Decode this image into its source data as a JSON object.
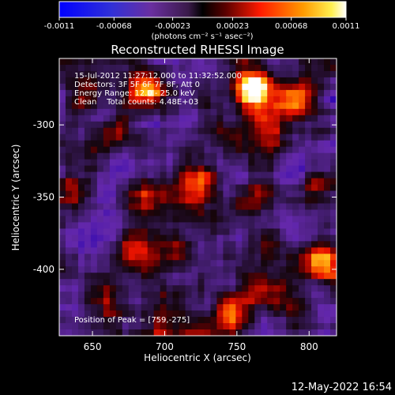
{
  "chart_data": {
    "type": "heatmap",
    "title": "Reconstructed RHESSI Image",
    "xlabel": "Heliocentric X (arcsec)",
    "ylabel": "Heliocentric Y (arcsec)",
    "x_ticks": [
      "650",
      "700",
      "750",
      "800"
    ],
    "x_tick_values": [
      650,
      700,
      750,
      800
    ],
    "y_ticks": [
      "-300",
      "-350",
      "-400"
    ],
    "y_tick_values": [
      -300,
      -350,
      -400
    ],
    "xlim": [
      627,
      819
    ],
    "ylim": [
      -446,
      -254
    ],
    "colorbar": {
      "ticks": [
        "-0.0011",
        "-0.00068",
        "-0.00023",
        "0.00023",
        "0.00068",
        "0.0011"
      ],
      "tick_values": [
        -0.0011,
        -0.00068,
        -0.00023,
        0.00023,
        0.00068,
        0.0011
      ],
      "range": [
        -0.0011,
        0.0011
      ],
      "units_label": "(photons cm⁻² s⁻¹ asec⁻²)"
    },
    "sources": [
      {
        "x": 759,
        "y": -275,
        "relative_intensity": 1.0
      },
      {
        "x": 688,
        "y": -275,
        "relative_intensity": 0.7
      },
      {
        "x": 812,
        "y": -395,
        "relative_intensity": 0.85
      },
      {
        "x": 775,
        "y": -415,
        "relative_intensity": 0.6
      },
      {
        "x": 790,
        "y": -282,
        "relative_intensity": 0.55
      },
      {
        "x": 770,
        "y": -300,
        "relative_intensity": 0.5
      },
      {
        "x": 665,
        "y": -305,
        "relative_intensity": 0.45
      },
      {
        "x": 635,
        "y": -345,
        "relative_intensity": 0.5
      },
      {
        "x": 690,
        "y": -352,
        "relative_intensity": 0.4
      },
      {
        "x": 725,
        "y": -340,
        "relative_intensity": 0.45
      },
      {
        "x": 760,
        "y": -352,
        "relative_intensity": 0.45
      },
      {
        "x": 680,
        "y": -385,
        "relative_intensity": 0.55
      },
      {
        "x": 712,
        "y": -395,
        "relative_intensity": 0.45
      },
      {
        "x": 745,
        "y": -425,
        "relative_intensity": 0.45
      },
      {
        "x": 740,
        "y": -440,
        "relative_intensity": 0.45
      },
      {
        "x": 700,
        "y": -440,
        "relative_intensity": 0.4
      },
      {
        "x": 805,
        "y": -340,
        "relative_intensity": 0.35
      },
      {
        "x": 655,
        "y": -420,
        "relative_intensity": 0.35
      },
      {
        "x": 640,
        "y": -282,
        "relative_intensity": 0.35
      }
    ],
    "annotations": {
      "time_range": "15-Jul-2012 11:27:12.000 to 11:32:52.000",
      "detectors": "Detectors: 3F 5F 6F 7F 8F, Att 0",
      "energy_range": "Energy Range: 12.0 - 25.0 keV",
      "clean": "Clean    Total counts: 4.48E+03",
      "peak_position": "Position of Peak = [759,-275]"
    }
  },
  "footer": {
    "timestamp": "12-May-2022 16:54"
  },
  "colors": {
    "background": "#000000",
    "low": "#0000ff",
    "mid_low": "#6a2fa0",
    "mid": "#000000",
    "mid_high": "#ff2000",
    "high": "#ffffff"
  }
}
